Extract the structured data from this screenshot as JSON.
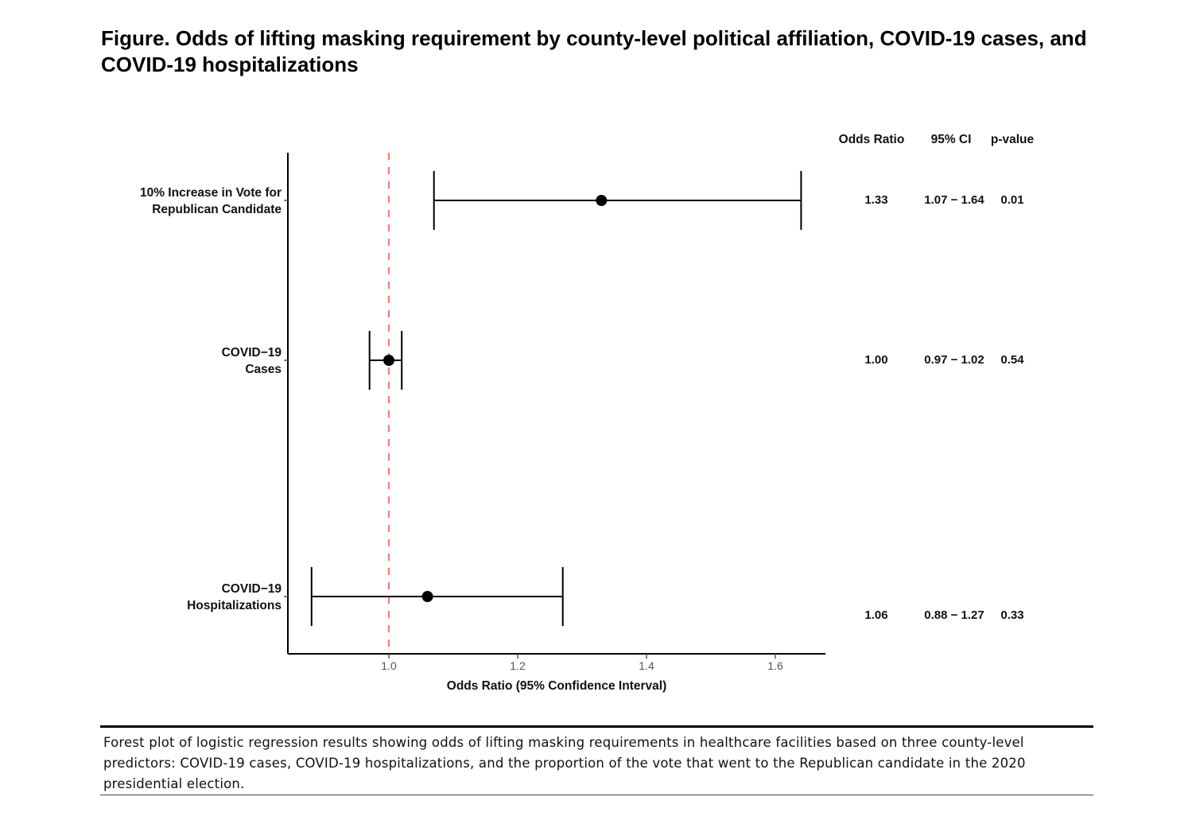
{
  "figure": {
    "title": "Figure. Odds of lifting masking requirement by county-level political affiliation, COVID-19 cases, and COVID-19 hospitalizations",
    "caption": "Forest plot of logistic regression results showing odds of lifting masking requirements in healthcare facilities based on three county-level predictors: COVID-19 cases, COVID-19 hospitalizations, and the proportion of the vote that went to the Republican candidate in the 2020 presidential election."
  },
  "chart_data": {
    "type": "forest",
    "xlabel": "Odds Ratio (95% Confidence Interval)",
    "xlim": [
      0.85,
      1.68
    ],
    "xticks": [
      1.0,
      1.2,
      1.4,
      1.6
    ],
    "xtick_labels": [
      "1.0",
      "1.2",
      "1.4",
      "1.6"
    ],
    "reference_line": {
      "x": 1.0,
      "style": "dashed",
      "color": "#f08070"
    },
    "point_color": "#000000",
    "table_headers": [
      "Odds Ratio",
      "95% CI",
      "p-value"
    ],
    "rows": [
      {
        "label_lines": [
          "10% Increase in Vote for",
          "Republican Candidate"
        ],
        "or": 1.33,
        "lower": 1.07,
        "upper": 1.64,
        "or_text": "1.33",
        "ci_text": "1.07 − 1.64",
        "p_text": "0.01"
      },
      {
        "label_lines": [
          "COVID−19",
          "Cases"
        ],
        "or": 1.0,
        "lower": 0.97,
        "upper": 1.02,
        "or_text": "1.00",
        "ci_text": "0.97 − 1.02",
        "p_text": "0.54"
      },
      {
        "label_lines": [
          "COVID−19",
          "Hospitalizations"
        ],
        "or": 1.06,
        "lower": 0.88,
        "upper": 1.27,
        "or_text": "1.06",
        "ci_text": "0.88 − 1.27",
        "p_text": "0.33"
      }
    ]
  }
}
